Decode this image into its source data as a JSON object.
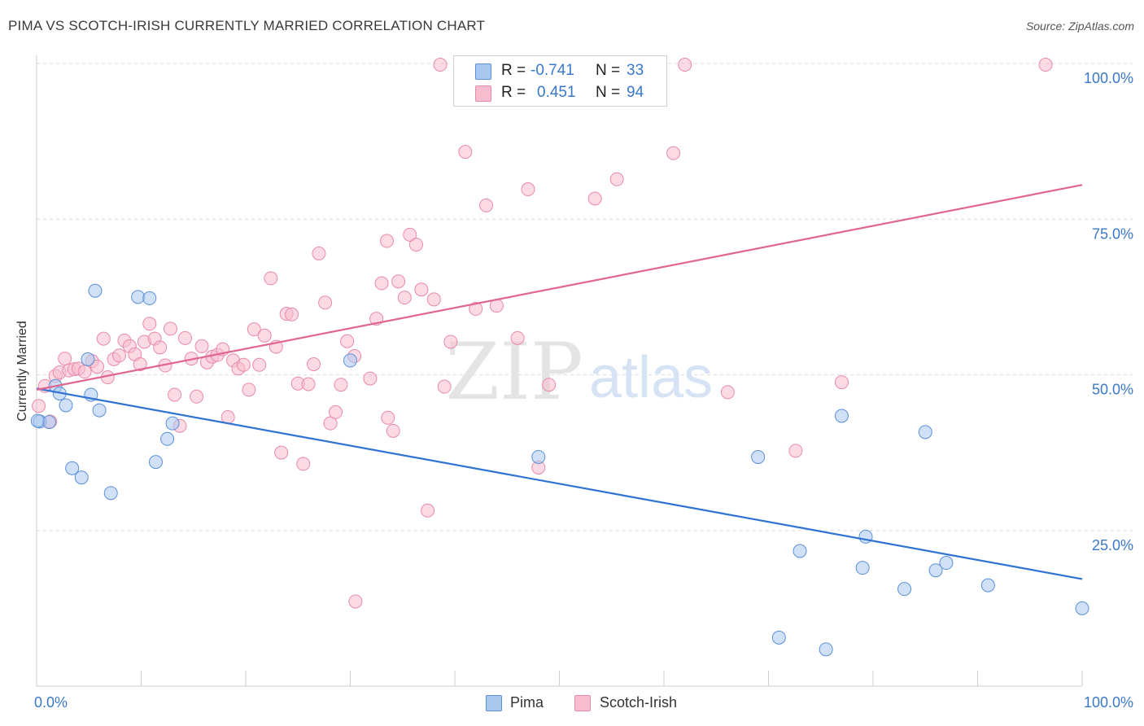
{
  "title": "PIMA VS SCOTCH-IRISH CURRENTLY MARRIED CORRELATION CHART",
  "source": "Source: ZipAtlas.com",
  "watermark": {
    "zip": "ZIP",
    "atlas": "atlas"
  },
  "legend": {
    "rows": [
      {
        "r_label": "R =",
        "r_value": "-0.741",
        "n_label": "N =",
        "n_value": "33"
      },
      {
        "r_label": "R =",
        "r_value": "0.451",
        "n_label": "N =",
        "n_value": "94"
      }
    ]
  },
  "colors": {
    "pima_fill": "#a9c8f0",
    "pima_stroke": "#5a8fd6",
    "pima_line": "#2e72d2",
    "si_fill": "#f7bccd",
    "si_stroke": "#e88aa8",
    "si_line": "#e0668f",
    "accent_text": "#3a78c9",
    "grid": "#dddddd"
  },
  "chart_data": {
    "type": "scatter",
    "title": "PIMA VS SCOTCH-IRISH CURRENTLY MARRIED CORRELATION CHART",
    "xlabel": "",
    "ylabel": "Currently Married",
    "xlim": [
      0,
      100
    ],
    "ylim": [
      0,
      100
    ],
    "x_tick_labels": [
      "0.0%",
      "100.0%"
    ],
    "y_tick_labels": [
      "25.0%",
      "50.0%",
      "75.0%",
      "100.0%"
    ],
    "y_ticks": [
      25,
      50,
      75,
      100
    ],
    "grid": true,
    "legend_position": "bottom-center",
    "series": [
      {
        "name": "Pima",
        "r": -0.741,
        "n": 33,
        "trend": {
          "x": [
            0,
            100
          ],
          "y": [
            47.8,
            17.2
          ]
        },
        "points": [
          [
            0.3,
            42.5
          ],
          [
            1.2,
            42.4
          ],
          [
            1.8,
            48.2
          ],
          [
            2.2,
            47.0
          ],
          [
            2.8,
            45.1
          ],
          [
            3.4,
            35.0
          ],
          [
            4.3,
            33.5
          ],
          [
            4.9,
            52.5
          ],
          [
            5.2,
            46.8
          ],
          [
            5.6,
            63.5
          ],
          [
            6.0,
            44.3
          ],
          [
            7.1,
            31.0
          ],
          [
            9.7,
            62.5
          ],
          [
            10.8,
            62.3
          ],
          [
            11.4,
            36.0
          ],
          [
            12.5,
            39.7
          ],
          [
            13.0,
            42.2
          ],
          [
            30.0,
            52.3
          ],
          [
            48.0,
            36.8
          ],
          [
            69.0,
            36.8
          ],
          [
            71.0,
            7.8
          ],
          [
            73.0,
            21.7
          ],
          [
            75.5,
            5.9
          ],
          [
            77.0,
            43.4
          ],
          [
            79.0,
            19.0
          ],
          [
            79.3,
            24.0
          ],
          [
            83.0,
            15.6
          ],
          [
            85.0,
            40.8
          ],
          [
            86.0,
            18.6
          ],
          [
            87.0,
            19.8
          ],
          [
            91.0,
            16.2
          ],
          [
            100.0,
            12.5
          ],
          [
            0.1,
            42.6
          ]
        ]
      },
      {
        "name": "Scotch-Irish",
        "r": 0.451,
        "n": 94,
        "trend": {
          "x": [
            0,
            100
          ],
          "y": [
            47.6,
            80.5
          ]
        },
        "points": [
          [
            0.2,
            45.0
          ],
          [
            0.8,
            48.2
          ],
          [
            1.3,
            42.5
          ],
          [
            1.8,
            49.8
          ],
          [
            2.2,
            50.4
          ],
          [
            2.7,
            52.6
          ],
          [
            3.1,
            50.7
          ],
          [
            3.6,
            50.9
          ],
          [
            4.0,
            51.0
          ],
          [
            4.6,
            50.5
          ],
          [
            5.3,
            52.2
          ],
          [
            5.8,
            51.3
          ],
          [
            6.4,
            55.8
          ],
          [
            6.8,
            49.6
          ],
          [
            7.4,
            52.5
          ],
          [
            7.9,
            53.1
          ],
          [
            8.4,
            55.5
          ],
          [
            8.9,
            54.6
          ],
          [
            9.4,
            53.3
          ],
          [
            9.9,
            51.7
          ],
          [
            10.3,
            55.3
          ],
          [
            10.8,
            58.2
          ],
          [
            11.3,
            55.8
          ],
          [
            11.8,
            54.4
          ],
          [
            12.3,
            51.5
          ],
          [
            12.8,
            57.4
          ],
          [
            13.2,
            46.8
          ],
          [
            13.7,
            41.8
          ],
          [
            14.2,
            55.9
          ],
          [
            14.8,
            52.6
          ],
          [
            15.3,
            46.5
          ],
          [
            15.8,
            54.6
          ],
          [
            16.3,
            52.0
          ],
          [
            16.8,
            52.9
          ],
          [
            17.3,
            53.2
          ],
          [
            17.8,
            54.1
          ],
          [
            18.3,
            43.2
          ],
          [
            18.8,
            52.3
          ],
          [
            19.3,
            51.0
          ],
          [
            19.8,
            51.6
          ],
          [
            20.3,
            47.6
          ],
          [
            20.8,
            57.3
          ],
          [
            21.3,
            51.6
          ],
          [
            21.8,
            56.3
          ],
          [
            22.4,
            65.5
          ],
          [
            22.9,
            54.5
          ],
          [
            23.4,
            37.5
          ],
          [
            23.9,
            59.8
          ],
          [
            24.4,
            59.7
          ],
          [
            25.0,
            48.6
          ],
          [
            25.5,
            35.7
          ],
          [
            26.0,
            48.5
          ],
          [
            26.5,
            51.7
          ],
          [
            27.0,
            69.5
          ],
          [
            27.6,
            61.6
          ],
          [
            28.1,
            42.2
          ],
          [
            28.6,
            44.0
          ],
          [
            29.1,
            48.4
          ],
          [
            29.7,
            55.4
          ],
          [
            30.4,
            53.0
          ],
          [
            31.9,
            49.4
          ],
          [
            32.5,
            59.0
          ],
          [
            33.0,
            64.7
          ],
          [
            33.5,
            71.5
          ],
          [
            33.6,
            43.1
          ],
          [
            34.1,
            41.0
          ],
          [
            34.6,
            65.0
          ],
          [
            35.2,
            62.4
          ],
          [
            35.7,
            72.5
          ],
          [
            36.3,
            70.9
          ],
          [
            36.8,
            63.7
          ],
          [
            37.4,
            28.2
          ],
          [
            38.0,
            62.1
          ],
          [
            38.6,
            99.8
          ],
          [
            39.0,
            48.1
          ],
          [
            39.6,
            55.3
          ],
          [
            41.0,
            85.8
          ],
          [
            42.0,
            60.6
          ],
          [
            43.0,
            77.2
          ],
          [
            44.0,
            61.1
          ],
          [
            45.3,
            99.8
          ],
          [
            46.0,
            55.9
          ],
          [
            47.0,
            79.8
          ],
          [
            48.0,
            35.1
          ],
          [
            49.0,
            48.4
          ],
          [
            53.4,
            78.3
          ],
          [
            55.5,
            81.4
          ],
          [
            60.9,
            85.6
          ],
          [
            62.0,
            99.8
          ],
          [
            66.1,
            47.2
          ],
          [
            72.6,
            37.8
          ],
          [
            77.0,
            48.8
          ],
          [
            96.5,
            99.8
          ],
          [
            30.5,
            13.6
          ]
        ]
      }
    ]
  }
}
